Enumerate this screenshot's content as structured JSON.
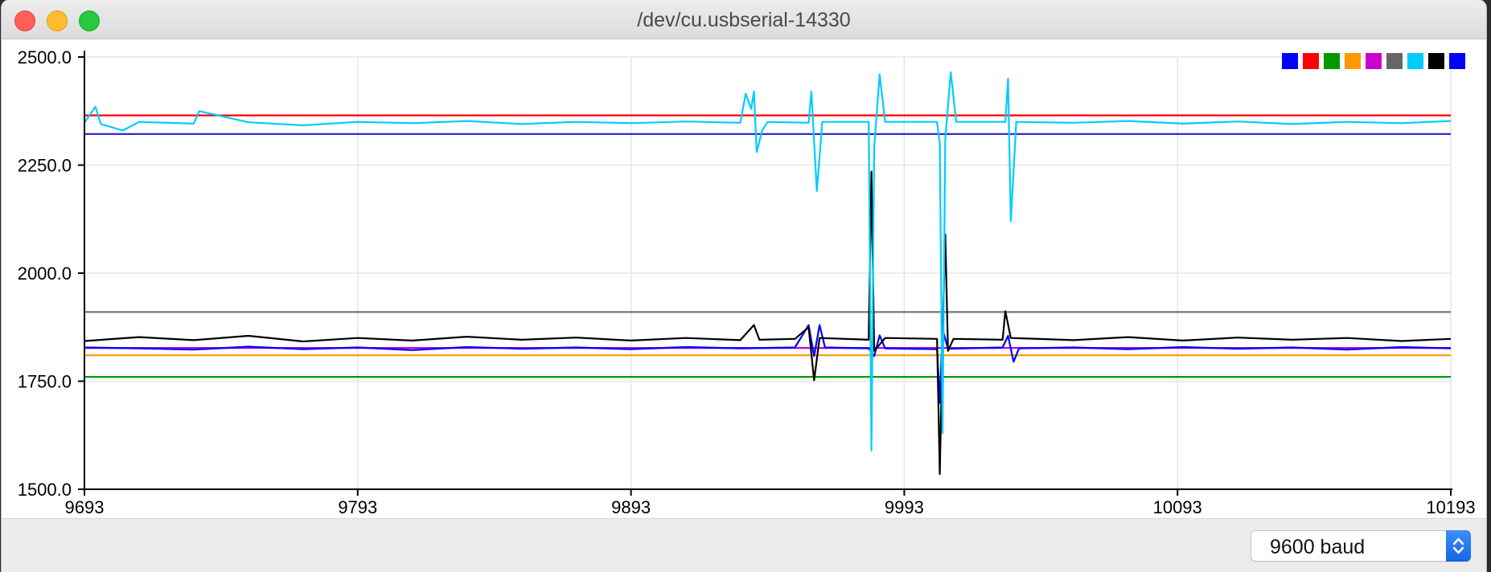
{
  "window": {
    "title": "/dev/cu.usbserial-14330"
  },
  "footer": {
    "baud_selected": "9600 baud",
    "stepper_icon": "up-down-chevron-icon"
  },
  "chart_data": {
    "type": "line",
    "title": "",
    "xlabel": "",
    "ylabel": "",
    "xlim": [
      9693,
      10193
    ],
    "ylim": [
      1500.0,
      2500.0
    ],
    "x_ticks": [
      "9693",
      "9793",
      "9893",
      "9993",
      "10093",
      "10193"
    ],
    "y_ticks": [
      "2500.0",
      "2250.0",
      "2000.0",
      "1750.0",
      "1500.0"
    ],
    "grid": true,
    "legend_placement": "top-right",
    "legend_colors": [
      "#0000ff",
      "#ff0000",
      "#009900",
      "#ff9900",
      "#cc00cc",
      "#666666",
      "#00ccff",
      "#000000",
      "#0000ff"
    ],
    "series": [
      {
        "color": "#ff0000",
        "points": [
          [
            9693,
            2365
          ],
          [
            10193,
            2365
          ]
        ]
      },
      {
        "color": "#1f1fd6",
        "points": [
          [
            9693,
            2322
          ],
          [
            10193,
            2322
          ]
        ]
      },
      {
        "color": "#777777",
        "points": [
          [
            9693,
            1910
          ],
          [
            10193,
            1910
          ]
        ]
      },
      {
        "color": "#ff9900",
        "points": [
          [
            9693,
            1810
          ],
          [
            10193,
            1810
          ]
        ]
      },
      {
        "color": "#009900",
        "points": [
          [
            9693,
            1760
          ],
          [
            10193,
            1760
          ]
        ]
      },
      {
        "color": "#cc00cc",
        "points": [
          [
            9693,
            1827
          ],
          [
            10193,
            1827
          ]
        ]
      },
      {
        "color": "#0000ff",
        "points": [
          [
            9693,
            1828
          ],
          [
            9713,
            1826
          ],
          [
            9733,
            1823
          ],
          [
            9753,
            1830
          ],
          [
            9773,
            1824
          ],
          [
            9793,
            1828
          ],
          [
            9813,
            1822
          ],
          [
            9833,
            1829
          ],
          [
            9853,
            1825
          ],
          [
            9873,
            1828
          ],
          [
            9893,
            1824
          ],
          [
            9913,
            1829
          ],
          [
            9933,
            1826
          ],
          [
            9953,
            1828
          ],
          [
            9958,
            1880
          ],
          [
            9960,
            1808
          ],
          [
            9962,
            1880
          ],
          [
            9964,
            1828
          ],
          [
            9980,
            1826
          ],
          [
            9982,
            1808
          ],
          [
            9984,
            1856
          ],
          [
            9986,
            1826
          ],
          [
            10005,
            1824
          ],
          [
            10006,
            1700
          ],
          [
            10007,
            1870
          ],
          [
            10009,
            1825
          ],
          [
            10029,
            1828
          ],
          [
            10031,
            1855
          ],
          [
            10033,
            1795
          ],
          [
            10035,
            1826
          ],
          [
            10055,
            1828
          ],
          [
            10075,
            1824
          ],
          [
            10095,
            1829
          ],
          [
            10115,
            1825
          ],
          [
            10135,
            1828
          ],
          [
            10155,
            1823
          ],
          [
            10175,
            1829
          ],
          [
            10193,
            1826
          ]
        ]
      },
      {
        "color": "#000000",
        "points": [
          [
            9693,
            1843
          ],
          [
            9713,
            1852
          ],
          [
            9733,
            1845
          ],
          [
            9753,
            1855
          ],
          [
            9773,
            1842
          ],
          [
            9793,
            1850
          ],
          [
            9813,
            1844
          ],
          [
            9833,
            1853
          ],
          [
            9853,
            1846
          ],
          [
            9873,
            1851
          ],
          [
            9893,
            1844
          ],
          [
            9913,
            1850
          ],
          [
            9933,
            1845
          ],
          [
            9938,
            1880
          ],
          [
            9940,
            1846
          ],
          [
            9953,
            1848
          ],
          [
            9958,
            1875
          ],
          [
            9960,
            1752
          ],
          [
            9962,
            1850
          ],
          [
            9980,
            1846
          ],
          [
            9981,
            2235
          ],
          [
            9982,
            1820
          ],
          [
            9984,
            1835
          ],
          [
            9986,
            1850
          ],
          [
            10005,
            1848
          ],
          [
            10006,
            1535
          ],
          [
            10007,
            1848
          ],
          [
            10008,
            2090
          ],
          [
            10009,
            1820
          ],
          [
            10011,
            1848
          ],
          [
            10029,
            1846
          ],
          [
            10030,
            1912
          ],
          [
            10032,
            1850
          ],
          [
            10055,
            1845
          ],
          [
            10075,
            1852
          ],
          [
            10095,
            1844
          ],
          [
            10115,
            1851
          ],
          [
            10135,
            1846
          ],
          [
            10155,
            1850
          ],
          [
            10175,
            1843
          ],
          [
            10193,
            1848
          ]
        ]
      },
      {
        "color": "#00ccff",
        "points": [
          [
            9693,
            2348
          ],
          [
            9697,
            2385
          ],
          [
            9699,
            2345
          ],
          [
            9707,
            2330
          ],
          [
            9713,
            2350
          ],
          [
            9733,
            2346
          ],
          [
            9735,
            2375
          ],
          [
            9753,
            2349
          ],
          [
            9773,
            2342
          ],
          [
            9793,
            2350
          ],
          [
            9813,
            2347
          ],
          [
            9833,
            2352
          ],
          [
            9853,
            2345
          ],
          [
            9873,
            2350
          ],
          [
            9893,
            2347
          ],
          [
            9913,
            2351
          ],
          [
            9933,
            2348
          ],
          [
            9935,
            2415
          ],
          [
            9937,
            2380
          ],
          [
            9938,
            2420
          ],
          [
            9939,
            2280
          ],
          [
            9941,
            2330
          ],
          [
            9943,
            2350
          ],
          [
            9958,
            2348
          ],
          [
            9959,
            2420
          ],
          [
            9961,
            2190
          ],
          [
            9963,
            2350
          ],
          [
            9980,
            2350
          ],
          [
            9981,
            1590
          ],
          [
            9982,
            2290
          ],
          [
            9984,
            2460
          ],
          [
            9986,
            2350
          ],
          [
            10005,
            2350
          ],
          [
            10006,
            2300
          ],
          [
            10007,
            1630
          ],
          [
            10008,
            2310
          ],
          [
            10010,
            2465
          ],
          [
            10012,
            2350
          ],
          [
            10030,
            2350
          ],
          [
            10031,
            2450
          ],
          [
            10032,
            2120
          ],
          [
            10034,
            2350
          ],
          [
            10055,
            2348
          ],
          [
            10075,
            2352
          ],
          [
            10095,
            2346
          ],
          [
            10115,
            2351
          ],
          [
            10135,
            2345
          ],
          [
            10155,
            2350
          ],
          [
            10175,
            2347
          ],
          [
            10193,
            2352
          ]
        ]
      }
    ]
  }
}
